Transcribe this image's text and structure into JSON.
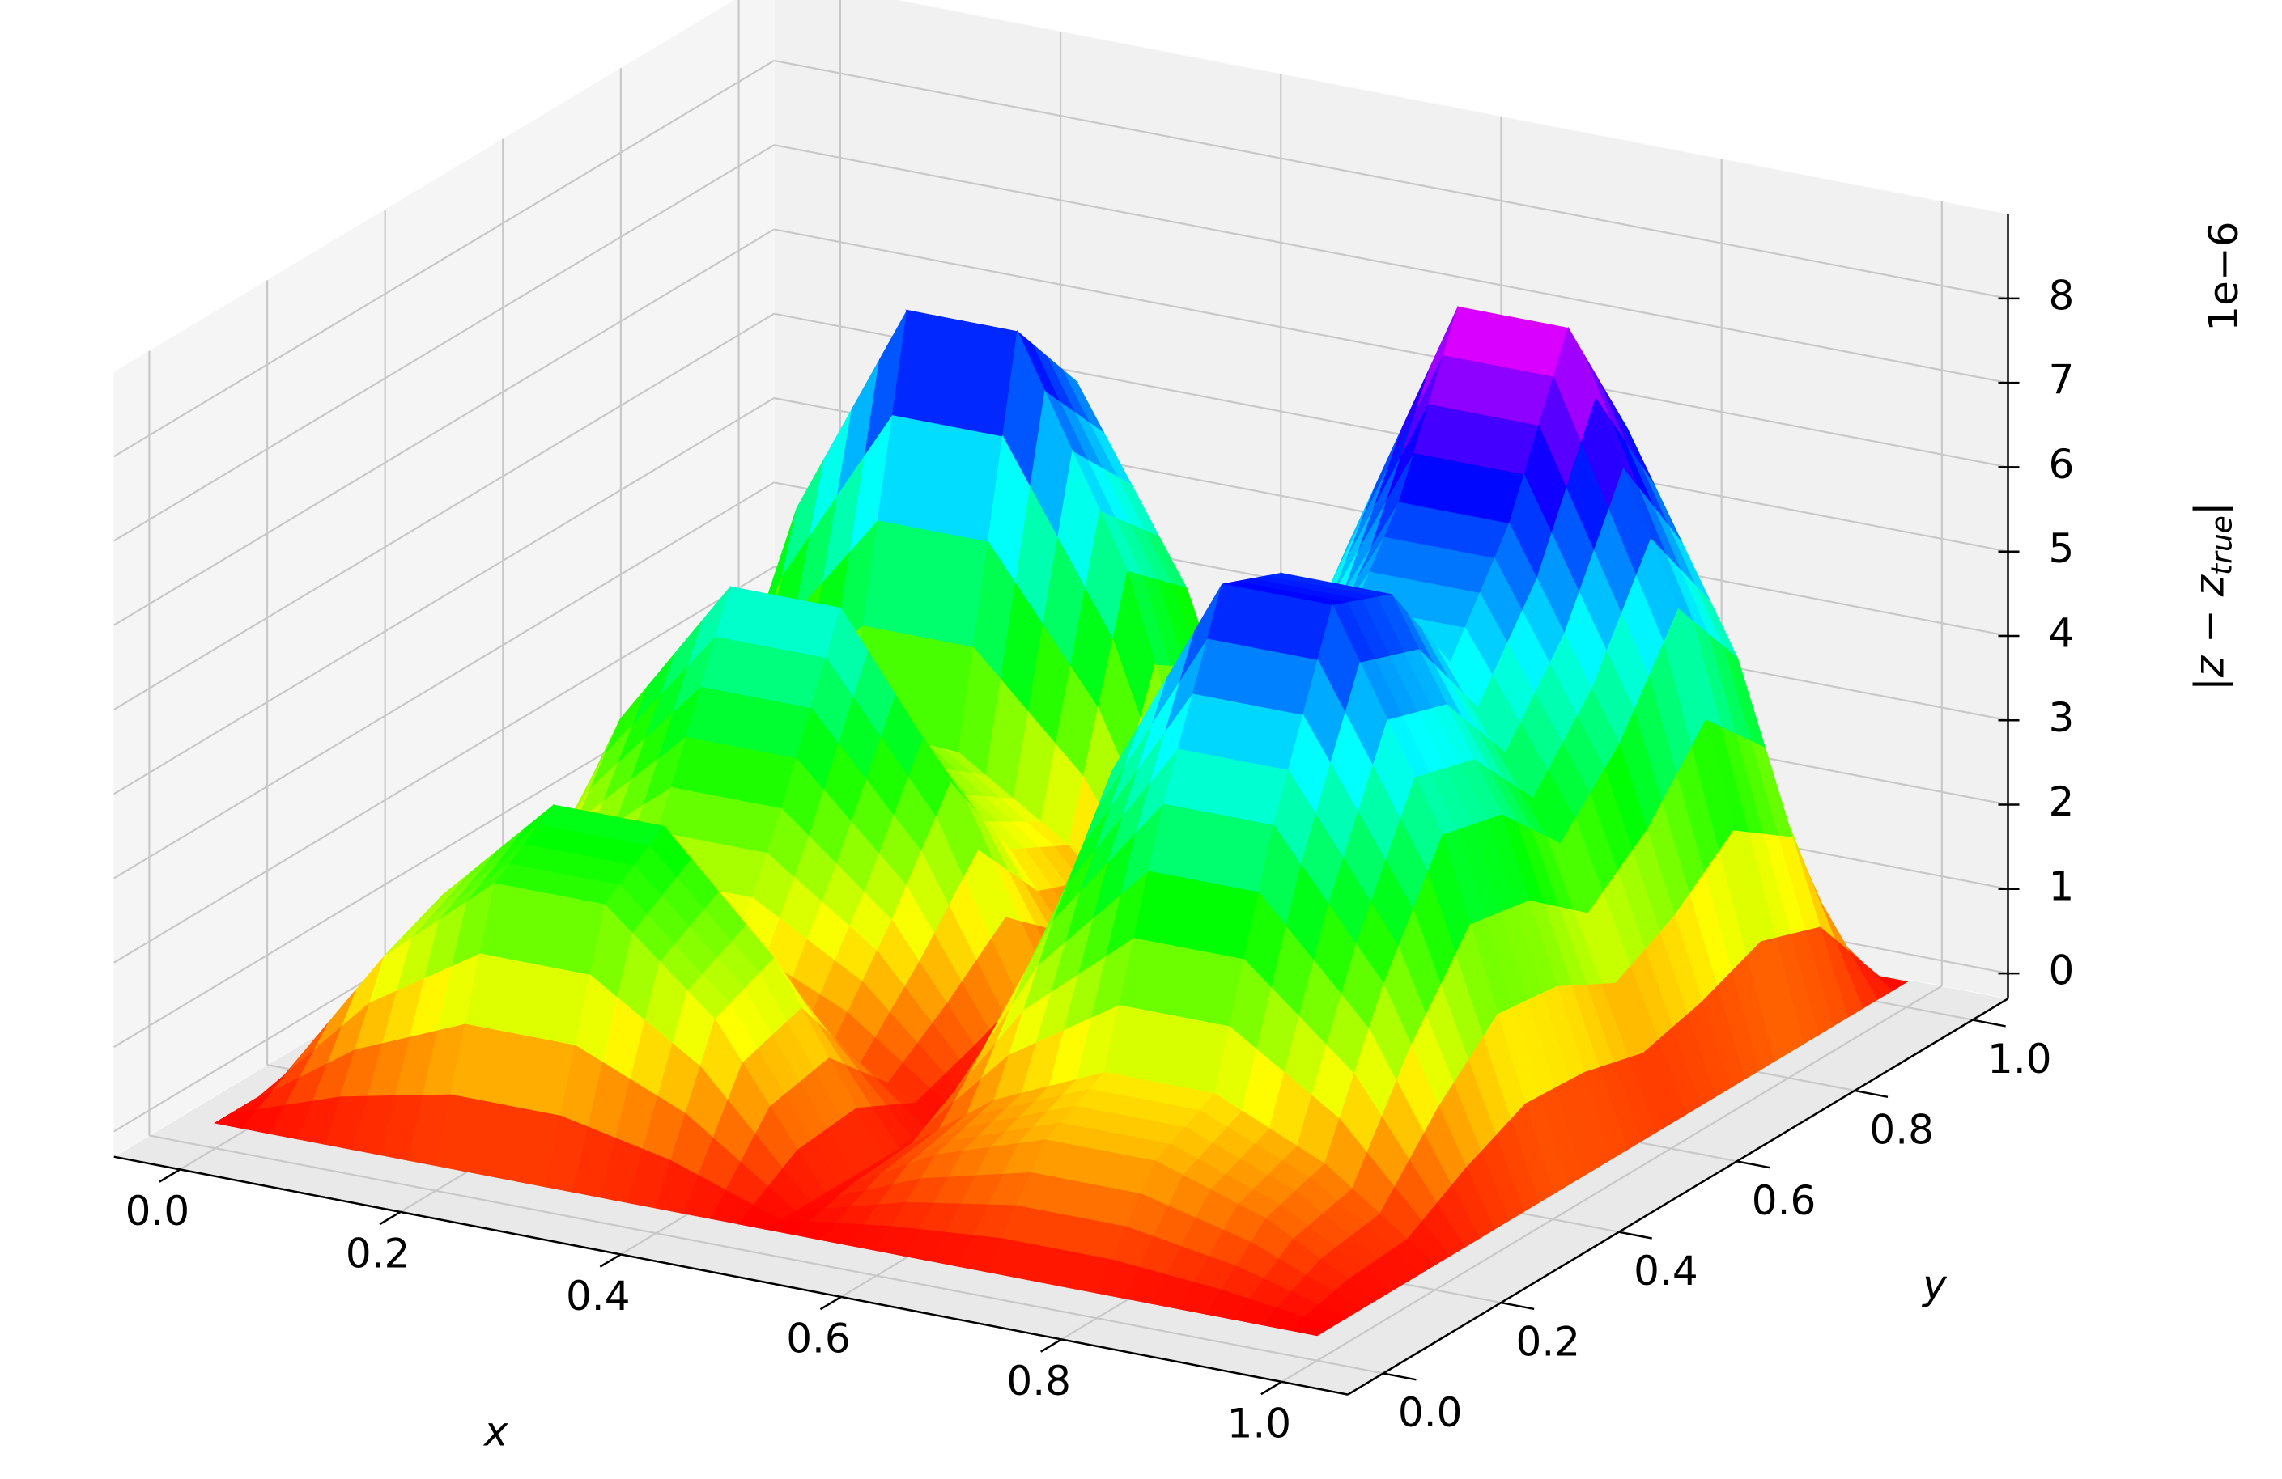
{
  "chart_data": {
    "type": "surface",
    "x": [
      0,
      0.1,
      0.2,
      0.3,
      0.4,
      0.5,
      0.6,
      0.7,
      0.8,
      0.9,
      1
    ],
    "y": [
      0,
      0.1,
      0.2,
      0.3,
      0.4,
      0.5,
      0.6,
      0.7,
      0.8,
      0.9,
      1
    ],
    "z": [
      [
        0,
        0,
        0,
        0,
        0,
        0,
        0,
        0,
        0,
        0,
        0
      ],
      [
        0,
        1.81,
        2.12,
        0.69,
        1.73,
        2.94,
        1.73,
        1.36,
        4.19,
        3.57,
        0
      ],
      [
        0,
        2.92,
        3.43,
        1.11,
        2.8,
        4.76,
        2.8,
        2.21,
        6.78,
        5.77,
        0
      ],
      [
        0,
        2.92,
        3.43,
        1.11,
        2.8,
        4.76,
        2.8,
        2.21,
        6.78,
        5.77,
        0
      ],
      [
        0,
        1.81,
        2.12,
        0.69,
        1.73,
        2.94,
        1.73,
        1.36,
        4.19,
        3.57,
        0
      ],
      [
        0,
        0,
        0,
        0,
        0,
        0,
        0,
        0,
        0,
        0,
        0
      ],
      [
        0,
        0.71,
        0.94,
        2.65,
        4.0,
        3.82,
        3.06,
        3.82,
        5.0,
        4.0,
        0
      ],
      [
        0,
        1.14,
        1.52,
        4.28,
        6.47,
        6.18,
        4.95,
        6.18,
        8.08,
        6.47,
        0
      ],
      [
        0,
        1.14,
        1.52,
        4.28,
        6.47,
        6.18,
        4.95,
        6.18,
        8.08,
        6.47,
        0
      ],
      [
        0,
        0.71,
        0.94,
        2.65,
        4.0,
        3.82,
        3.06,
        3.82,
        5.0,
        4.0,
        0
      ],
      [
        0,
        0,
        0,
        0,
        0,
        0,
        0,
        0,
        0,
        0,
        0
      ]
    ],
    "xlabel": "x",
    "ylabel": "y",
    "zlabel": [
      "|z − z",
      "true",
      "|"
    ],
    "z_offset_label": "1e−6",
    "xlim": [
      -0.06,
      1.06
    ],
    "ylim": [
      -0.06,
      1.06
    ],
    "zlim": [
      -0.3,
      9.0
    ],
    "xticks": [
      {
        "value": 0,
        "label": "0.0"
      },
      {
        "value": 0.2,
        "label": "0.2"
      },
      {
        "value": 0.4,
        "label": "0.4"
      },
      {
        "value": 0.6,
        "label": "0.6"
      },
      {
        "value": 0.8,
        "label": "0.8"
      },
      {
        "value": 1,
        "label": "1.0"
      }
    ],
    "yticks": [
      {
        "value": 0,
        "label": "0.0"
      },
      {
        "value": 0.2,
        "label": "0.2"
      },
      {
        "value": 0.4,
        "label": "0.4"
      },
      {
        "value": 0.6,
        "label": "0.6"
      },
      {
        "value": 0.8,
        "label": "0.8"
      },
      {
        "value": 1,
        "label": "1.0"
      }
    ],
    "zticks": [
      0,
      1,
      2,
      3,
      4,
      5,
      6,
      7,
      8
    ],
    "grid": true
  }
}
